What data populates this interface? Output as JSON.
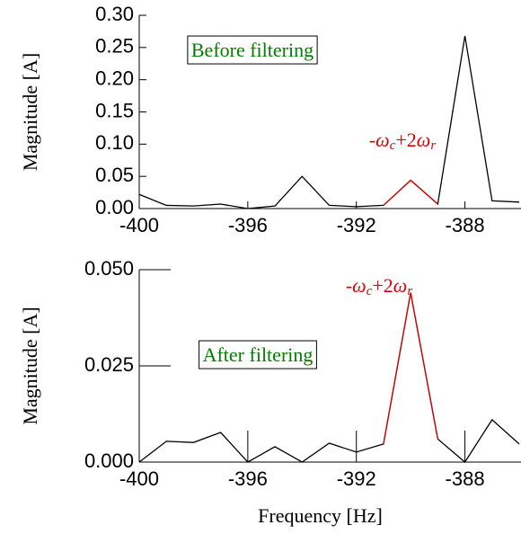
{
  "chart_data": [
    {
      "type": "line",
      "ylabel": "Magnitude [A]",
      "x": [
        -400,
        -399,
        -398,
        -397,
        -396,
        -395,
        -394,
        -393,
        -392,
        -391,
        -390,
        -389,
        -388,
        -387,
        -386
      ],
      "series": [
        {
          "color": "#000000",
          "values": [
            0.022,
            0.005,
            0.004,
            0.007,
            0.0,
            0.004,
            0.05,
            0.005,
            0.003,
            0.005,
            0.044,
            0.007,
            0.268,
            0.012,
            0.01
          ]
        },
        {
          "color": "#dd0000",
          "values": [
            null,
            null,
            null,
            null,
            null,
            null,
            null,
            null,
            null,
            0.005,
            0.044,
            0.007,
            null,
            null,
            null
          ]
        }
      ],
      "xlim": [
        -400,
        -386
      ],
      "xticks": [
        -400,
        -396,
        -392,
        -388
      ],
      "ylim": [
        0,
        0.3
      ],
      "yticks": [
        {
          "value": 0,
          "label": "0.00"
        },
        {
          "value": 0.05,
          "label": "0.05"
        },
        {
          "value": 0.1,
          "label": "0.10"
        },
        {
          "value": 0.15,
          "label": "0.15"
        },
        {
          "value": 0.2,
          "label": "0.20"
        },
        {
          "value": 0.25,
          "label": "0.25"
        },
        {
          "value": 0.3,
          "label": "0.30"
        }
      ],
      "annotations": [
        {
          "parts": [
            "Before filtering"
          ],
          "color": "#008000"
        },
        {
          "parts": [
            "-",
            "ω",
            "c",
            "+2",
            "ω",
            "r"
          ],
          "color": "#dd0000"
        }
      ]
    },
    {
      "type": "line",
      "ylabel": "Magnitude [A]",
      "xlabel": "Frequency [Hz]",
      "x": [
        -400,
        -399,
        -398,
        -397,
        -396,
        -395,
        -394,
        -393,
        -392,
        -391,
        -390,
        -389,
        -388,
        -387,
        -386
      ],
      "series": [
        {
          "color": "#000000",
          "values": [
            0.0,
            0.0054,
            0.0051,
            0.0077,
            0.0,
            0.004,
            0.0,
            0.0049,
            0.0026,
            0.0047,
            0.044,
            0.006,
            0.0,
            0.011,
            0.0047
          ]
        },
        {
          "color": "#dd0000",
          "values": [
            null,
            null,
            null,
            null,
            null,
            null,
            null,
            null,
            null,
            0.0047,
            0.044,
            0.006,
            null,
            null,
            null
          ]
        }
      ],
      "xlim": [
        -400,
        -386
      ],
      "xticks": [
        -400,
        -396,
        -392,
        -388
      ],
      "ylim": [
        0,
        0.05
      ],
      "yticks": [
        {
          "value": 0,
          "label": "0.000"
        },
        {
          "value": 0.025,
          "label": "0.025"
        },
        {
          "value": 0.05,
          "label": "0.050"
        }
      ],
      "annotations": [
        {
          "parts": [
            "After filtering"
          ],
          "color": "#008000"
        },
        {
          "parts": [
            "-",
            "ω",
            "c",
            "+2",
            "ω",
            "r"
          ],
          "color": "#dd0000"
        }
      ]
    }
  ]
}
